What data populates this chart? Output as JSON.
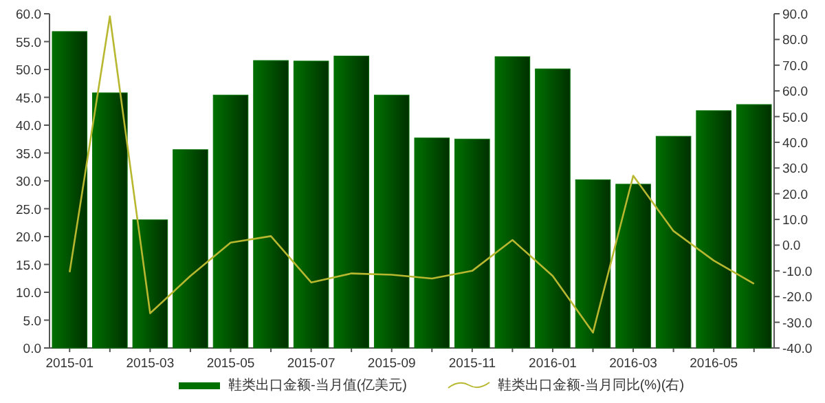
{
  "chart_data": {
    "type": "bar",
    "categories": [
      "2015-01",
      null,
      "2015-03",
      null,
      "2015-05",
      null,
      "2015-07",
      null,
      "2015-09",
      null,
      "2015-11",
      null,
      "2016-01",
      null,
      "2016-03",
      null,
      "2016-05",
      null
    ],
    "series": [
      {
        "name": "鞋类出口金额-当月值(亿美元)",
        "color": "#007000",
        "values": [
          56.8,
          45.8,
          23.0,
          35.6,
          45.4,
          51.6,
          51.5,
          52.4,
          45.4,
          37.7,
          37.5,
          52.3,
          50.1,
          30.2,
          29.4,
          38.0,
          42.6,
          43.7
        ]
      },
      {
        "name": "鞋类出口金额-当月同比(%)(右)",
        "type": "line",
        "axis": "y2",
        "color": "#b8b830",
        "values": [
          -10.5,
          89,
          -26.5,
          -12,
          1,
          3.5,
          -14.5,
          -11,
          -11.5,
          -13,
          -10,
          2,
          -12,
          -34,
          27,
          5.5,
          -6,
          -15
        ]
      }
    ],
    "ylim": [
      0,
      60
    ],
    "yticks": [
      {
        "value": 0,
        "label": "0.0"
      },
      {
        "value": 5,
        "label": "5.0"
      },
      {
        "value": 10,
        "label": "10.0"
      },
      {
        "value": 15,
        "label": "15.0"
      },
      {
        "value": 20,
        "label": "20.0"
      },
      {
        "value": 25,
        "label": "25.0"
      },
      {
        "value": 30,
        "label": "30.0"
      },
      {
        "value": 35,
        "label": "35.0"
      },
      {
        "value": 40,
        "label": "40.0"
      },
      {
        "value": 45,
        "label": "45.0"
      },
      {
        "value": 50,
        "label": "50.0"
      },
      {
        "value": 55,
        "label": "55.0"
      },
      {
        "value": 60,
        "label": "60.0"
      }
    ],
    "y2lim": [
      -40,
      90
    ],
    "y2ticks": [
      {
        "value": -40,
        "label": "-40.0"
      },
      {
        "value": -30,
        "label": "-30.0"
      },
      {
        "value": -20,
        "label": "-20.0"
      },
      {
        "value": -10,
        "label": "-10.0"
      },
      {
        "value": 0,
        "label": "0.0"
      },
      {
        "value": 10,
        "label": "10.0"
      },
      {
        "value": 20,
        "label": "20.0"
      },
      {
        "value": 30,
        "label": "30.0"
      },
      {
        "value": 40,
        "label": "40.0"
      },
      {
        "value": 50,
        "label": "50.0"
      },
      {
        "value": 60,
        "label": "60.0"
      },
      {
        "value": 70,
        "label": "70.0"
      },
      {
        "value": 80,
        "label": "80.0"
      },
      {
        "value": 90,
        "label": "90.0"
      }
    ],
    "legend": "bottom"
  }
}
